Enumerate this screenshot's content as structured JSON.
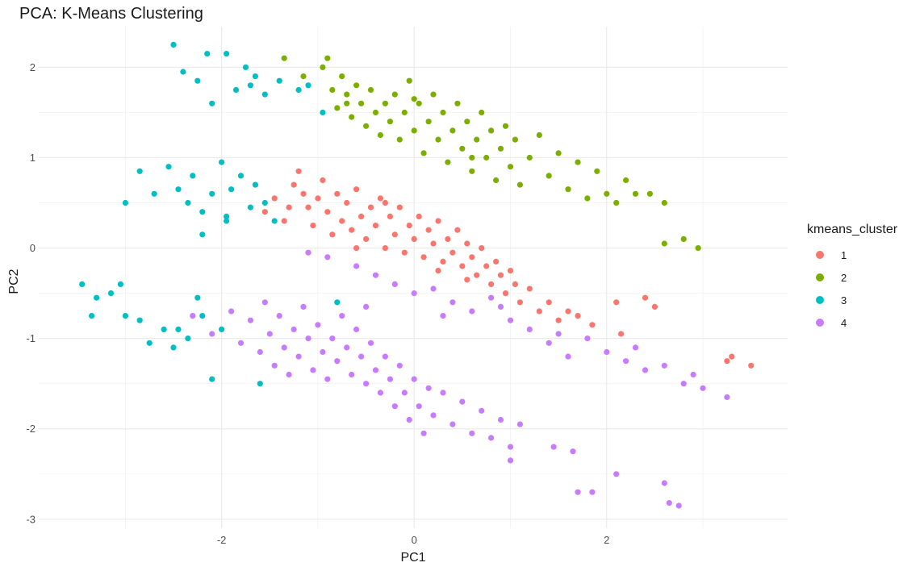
{
  "chart_data": {
    "type": "scatter",
    "title": "PCA: K-Means Clustering",
    "xlabel": "PC1",
    "ylabel": "PC2",
    "xlim": [
      -3.9,
      3.88
    ],
    "ylim": [
      -3.1,
      2.45
    ],
    "x_ticks": [
      -2,
      0,
      2
    ],
    "y_ticks": [
      -3,
      -2,
      -1,
      0,
      1,
      2
    ],
    "grid": true,
    "legend": {
      "title": "kmeans_cluster",
      "position": "right"
    },
    "series": [
      {
        "name": "1",
        "color": "#F8766D",
        "points": [
          [
            -1.55,
            0.4
          ],
          [
            -1.45,
            0.55
          ],
          [
            -1.35,
            0.3
          ],
          [
            -1.25,
            0.7
          ],
          [
            -1.2,
            0.85
          ],
          [
            -1.15,
            0.6
          ],
          [
            -1.1,
            0.45
          ],
          [
            -1.05,
            0.25
          ],
          [
            -1.0,
            0.55
          ],
          [
            -0.95,
            0.75
          ],
          [
            -0.9,
            0.4
          ],
          [
            -0.85,
            0.15
          ],
          [
            -0.8,
            0.6
          ],
          [
            -0.75,
            0.3
          ],
          [
            -0.7,
            0.5
          ],
          [
            -0.65,
            0.2
          ],
          [
            -0.6,
            0.65
          ],
          [
            -0.55,
            0.35
          ],
          [
            -0.5,
            0.1
          ],
          [
            -0.45,
            0.45
          ],
          [
            -0.4,
            0.25
          ],
          [
            -0.35,
            0.55
          ],
          [
            -0.3,
            0.0
          ],
          [
            -0.25,
            0.35
          ],
          [
            -0.2,
            0.15
          ],
          [
            -0.15,
            0.45
          ],
          [
            -0.1,
            -0.05
          ],
          [
            -0.05,
            0.25
          ],
          [
            0.0,
            0.1
          ],
          [
            0.05,
            0.35
          ],
          [
            0.1,
            -0.1
          ],
          [
            0.15,
            0.2
          ],
          [
            0.2,
            0.05
          ],
          [
            0.25,
            0.3
          ],
          [
            0.3,
            -0.15
          ],
          [
            0.35,
            0.1
          ],
          [
            0.4,
            -0.05
          ],
          [
            0.45,
            0.2
          ],
          [
            0.5,
            -0.2
          ],
          [
            0.55,
            0.05
          ],
          [
            0.6,
            -0.1
          ],
          [
            0.65,
            -0.3
          ],
          [
            0.7,
            0.0
          ],
          [
            0.75,
            -0.2
          ],
          [
            0.8,
            -0.4
          ],
          [
            0.85,
            -0.15
          ],
          [
            0.9,
            -0.3
          ],
          [
            0.95,
            -0.5
          ],
          [
            1.0,
            -0.25
          ],
          [
            1.05,
            -0.4
          ],
          [
            1.1,
            -0.6
          ],
          [
            1.2,
            -0.45
          ],
          [
            1.3,
            -0.7
          ],
          [
            1.4,
            -0.6
          ],
          [
            1.5,
            -0.8
          ],
          [
            1.6,
            -0.7
          ],
          [
            1.7,
            -0.75
          ],
          [
            1.85,
            -0.85
          ],
          [
            2.1,
            -0.6
          ],
          [
            2.15,
            -0.95
          ],
          [
            2.4,
            -0.55
          ],
          [
            2.5,
            -0.65
          ],
          [
            3.25,
            -1.25
          ],
          [
            3.3,
            -1.2
          ],
          [
            3.5,
            -1.3
          ],
          [
            -0.3,
            0.5
          ],
          [
            0.25,
            -0.25
          ],
          [
            0.55,
            -0.35
          ],
          [
            -0.6,
            -0.0
          ],
          [
            -1.3,
            0.45
          ]
        ]
      },
      {
        "name": "2",
        "color": "#7CAE00",
        "points": [
          [
            -1.35,
            2.1
          ],
          [
            -1.15,
            1.9
          ],
          [
            -0.95,
            2.0
          ],
          [
            -0.9,
            2.1
          ],
          [
            -0.85,
            1.75
          ],
          [
            -0.8,
            1.55
          ],
          [
            -0.75,
            1.9
          ],
          [
            -0.7,
            1.7
          ],
          [
            -0.65,
            1.45
          ],
          [
            -0.6,
            1.8
          ],
          [
            -0.55,
            1.6
          ],
          [
            -0.5,
            1.35
          ],
          [
            -0.45,
            1.75
          ],
          [
            -0.4,
            1.5
          ],
          [
            -0.35,
            1.25
          ],
          [
            -0.3,
            1.6
          ],
          [
            -0.25,
            1.4
          ],
          [
            -0.2,
            1.7
          ],
          [
            -0.15,
            1.2
          ],
          [
            -0.1,
            1.5
          ],
          [
            -0.05,
            1.85
          ],
          [
            0.0,
            1.3
          ],
          [
            0.05,
            1.6
          ],
          [
            0.1,
            1.05
          ],
          [
            0.15,
            1.4
          ],
          [
            0.2,
            1.7
          ],
          [
            0.25,
            1.2
          ],
          [
            0.3,
            1.5
          ],
          [
            0.35,
            0.95
          ],
          [
            0.4,
            1.3
          ],
          [
            0.45,
            1.6
          ],
          [
            0.5,
            1.1
          ],
          [
            0.55,
            1.4
          ],
          [
            0.6,
            0.85
          ],
          [
            0.65,
            1.2
          ],
          [
            0.7,
            1.5
          ],
          [
            0.75,
            1.0
          ],
          [
            0.8,
            1.3
          ],
          [
            0.85,
            0.75
          ],
          [
            0.9,
            1.1
          ],
          [
            0.95,
            1.35
          ],
          [
            1.0,
            0.9
          ],
          [
            1.05,
            1.2
          ],
          [
            1.1,
            0.7
          ],
          [
            1.2,
            1.0
          ],
          [
            1.3,
            1.25
          ],
          [
            1.4,
            0.8
          ],
          [
            1.5,
            1.05
          ],
          [
            1.6,
            0.65
          ],
          [
            1.7,
            0.95
          ],
          [
            1.8,
            0.55
          ],
          [
            1.9,
            0.85
          ],
          [
            2.0,
            0.6
          ],
          [
            2.1,
            0.5
          ],
          [
            2.2,
            0.75
          ],
          [
            2.3,
            0.6
          ],
          [
            2.45,
            0.6
          ],
          [
            2.6,
            0.5
          ],
          [
            2.6,
            0.05
          ],
          [
            2.8,
            0.1
          ],
          [
            2.95,
            0.0
          ],
          [
            -0.7,
            1.6
          ],
          [
            0.0,
            1.65
          ],
          [
            0.6,
            1.0
          ]
        ]
      },
      {
        "name": "3",
        "color": "#00BFC4",
        "points": [
          [
            -2.5,
            2.25
          ],
          [
            -2.4,
            1.95
          ],
          [
            -2.25,
            1.85
          ],
          [
            -2.15,
            2.15
          ],
          [
            -2.1,
            1.6
          ],
          [
            -1.95,
            2.15
          ],
          [
            -1.85,
            1.75
          ],
          [
            -1.75,
            2.0
          ],
          [
            -1.7,
            1.8
          ],
          [
            -1.65,
            1.9
          ],
          [
            -1.55,
            1.7
          ],
          [
            -1.4,
            1.85
          ],
          [
            -1.2,
            1.75
          ],
          [
            -1.1,
            1.8
          ],
          [
            -0.95,
            1.5
          ],
          [
            -3.0,
            0.5
          ],
          [
            -2.85,
            0.85
          ],
          [
            -2.7,
            0.6
          ],
          [
            -2.55,
            0.9
          ],
          [
            -2.45,
            0.65
          ],
          [
            -2.35,
            0.5
          ],
          [
            -2.3,
            0.8
          ],
          [
            -2.2,
            0.4
          ],
          [
            -2.1,
            0.6
          ],
          [
            -2.0,
            0.95
          ],
          [
            -1.95,
            0.35
          ],
          [
            -1.9,
            0.65
          ],
          [
            -1.8,
            0.8
          ],
          [
            -1.7,
            0.45
          ],
          [
            -1.65,
            0.7
          ],
          [
            -1.55,
            0.5
          ],
          [
            -1.45,
            0.3
          ],
          [
            -2.2,
            0.15
          ],
          [
            -1.95,
            0.3
          ],
          [
            -0.8,
            -0.6
          ],
          [
            -3.45,
            -0.4
          ],
          [
            -3.35,
            -0.75
          ],
          [
            -3.3,
            -0.55
          ],
          [
            -3.15,
            -0.5
          ],
          [
            -3.05,
            -0.4
          ],
          [
            -3.0,
            -0.75
          ],
          [
            -2.85,
            -0.8
          ],
          [
            -2.75,
            -1.05
          ],
          [
            -2.6,
            -0.9
          ],
          [
            -2.5,
            -1.1
          ],
          [
            -2.45,
            -0.9
          ],
          [
            -2.35,
            -1.0
          ],
          [
            -2.2,
            -0.75
          ],
          [
            -2.1,
            -1.45
          ],
          [
            -2.0,
            -0.9
          ],
          [
            -1.6,
            -1.5
          ],
          [
            -2.25,
            -0.55
          ]
        ]
      },
      {
        "name": "4",
        "color": "#C77CFF",
        "points": [
          [
            -2.1,
            -0.95
          ],
          [
            -1.9,
            -0.7
          ],
          [
            -1.8,
            -1.05
          ],
          [
            -1.7,
            -0.8
          ],
          [
            -1.6,
            -1.15
          ],
          [
            -1.55,
            -0.6
          ],
          [
            -1.5,
            -0.95
          ],
          [
            -1.45,
            -1.3
          ],
          [
            -1.4,
            -0.75
          ],
          [
            -1.35,
            -1.1
          ],
          [
            -1.3,
            -1.4
          ],
          [
            -1.25,
            -0.9
          ],
          [
            -1.2,
            -1.2
          ],
          [
            -1.15,
            -0.65
          ],
          [
            -1.1,
            -1.0
          ],
          [
            -1.05,
            -1.35
          ],
          [
            -1.0,
            -0.85
          ],
          [
            -0.95,
            -1.15
          ],
          [
            -0.9,
            -1.45
          ],
          [
            -0.85,
            -1.0
          ],
          [
            -0.8,
            -1.25
          ],
          [
            -0.75,
            -0.75
          ],
          [
            -0.7,
            -1.1
          ],
          [
            -0.65,
            -1.4
          ],
          [
            -0.6,
            -0.9
          ],
          [
            -0.55,
            -1.2
          ],
          [
            -0.5,
            -1.5
          ],
          [
            -0.45,
            -1.05
          ],
          [
            -0.4,
            -1.35
          ],
          [
            -0.35,
            -1.6
          ],
          [
            -0.3,
            -1.2
          ],
          [
            -0.25,
            -1.45
          ],
          [
            -0.2,
            -1.75
          ],
          [
            -0.15,
            -1.3
          ],
          [
            -0.1,
            -1.6
          ],
          [
            -0.05,
            -1.9
          ],
          [
            0.0,
            -1.45
          ],
          [
            0.05,
            -1.75
          ],
          [
            0.1,
            -2.05
          ],
          [
            0.15,
            -1.55
          ],
          [
            0.2,
            -1.85
          ],
          [
            0.3,
            -1.6
          ],
          [
            0.4,
            -1.95
          ],
          [
            0.5,
            -1.7
          ],
          [
            0.6,
            -2.05
          ],
          [
            0.7,
            -1.8
          ],
          [
            0.8,
            -2.1
          ],
          [
            0.9,
            -1.9
          ],
          [
            1.0,
            -2.2
          ],
          [
            1.1,
            -1.95
          ],
          [
            1.0,
            -2.35
          ],
          [
            1.45,
            -2.2
          ],
          [
            1.65,
            -2.25
          ],
          [
            1.7,
            -2.7
          ],
          [
            1.85,
            -2.7
          ],
          [
            2.1,
            -2.5
          ],
          [
            2.6,
            -2.6
          ],
          [
            2.75,
            -2.85
          ],
          [
            2.65,
            -2.82
          ],
          [
            -1.1,
            -0.05
          ],
          [
            -0.9,
            -0.1
          ],
          [
            -0.6,
            -0.2
          ],
          [
            -0.4,
            -0.3
          ],
          [
            -0.2,
            -0.4
          ],
          [
            0.0,
            -0.5
          ],
          [
            0.2,
            -0.45
          ],
          [
            0.4,
            -0.6
          ],
          [
            0.6,
            -0.7
          ],
          [
            0.8,
            -0.55
          ],
          [
            1.0,
            -0.8
          ],
          [
            1.2,
            -0.9
          ],
          [
            1.4,
            -1.05
          ],
          [
            1.6,
            -1.2
          ],
          [
            1.8,
            -1.0
          ],
          [
            2.0,
            -1.15
          ],
          [
            2.2,
            -1.25
          ],
          [
            2.4,
            -1.35
          ],
          [
            2.6,
            -1.3
          ],
          [
            2.8,
            -1.5
          ],
          [
            3.0,
            -1.55
          ],
          [
            3.25,
            -1.65
          ],
          [
            -0.5,
            -0.65
          ],
          [
            0.3,
            -0.75
          ],
          [
            0.9,
            -0.65
          ],
          [
            1.5,
            -0.95
          ],
          [
            2.3,
            -1.1
          ],
          [
            2.9,
            -1.4
          ],
          [
            -2.3,
            -0.75
          ]
        ]
      }
    ]
  }
}
